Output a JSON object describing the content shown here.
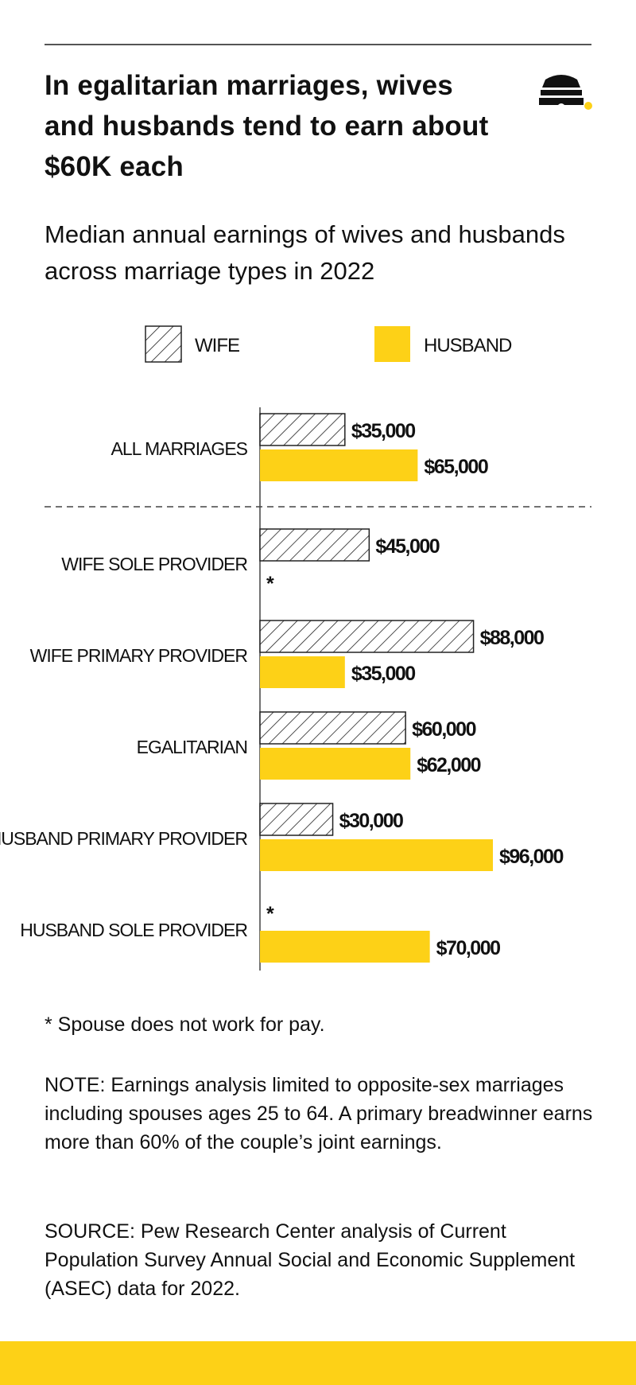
{
  "title": "In egalitarian marriages, wives and husbands tend to earn about $60K each",
  "subtitle": "Median annual earnings of wives and husbands across marriage types in 2022",
  "colors": {
    "husband": "#fdd117",
    "wife_hatch": "#222222",
    "footer": "#fdd117"
  },
  "chart_data": {
    "type": "bar",
    "orientation": "horizontal",
    "categories": [
      "ALL MARRIAGES",
      "WIFE SOLE PROVIDER",
      "WIFE PRIMARY PROVIDER",
      "EGALITARIAN",
      "HUSBAND PRIMARY PROVIDER",
      "HUSBAND SOLE PROVIDER"
    ],
    "series": [
      {
        "name": "WIFE",
        "values": [
          35000,
          45000,
          88000,
          60000,
          30000,
          null
        ],
        "labels": [
          "$35,000",
          "$45,000",
          "$88,000",
          "$60,000",
          "$30,000",
          "*"
        ]
      },
      {
        "name": "HUSBAND",
        "values": [
          65000,
          null,
          35000,
          62000,
          96000,
          70000
        ],
        "labels": [
          "$65,000",
          "*",
          "$35,000",
          "$62,000",
          "$96,000",
          "$70,000"
        ]
      }
    ],
    "xlim": [
      0,
      120000
    ],
    "legend_placement": "top",
    "grid": false,
    "separator_after_first": true
  },
  "footnote": "* Spouse does not work for pay.",
  "note": "NOTE: Earnings analysis limited to opposite-sex marriages including spouses ages 25 to 64. A primary breadwinner earns more than 60% of the couple’s joint earnings.",
  "source": "SOURCE: Pew Research Center analysis of Current Population Survey Annual Social and Economic Supplement (ASEC) data for 2022."
}
